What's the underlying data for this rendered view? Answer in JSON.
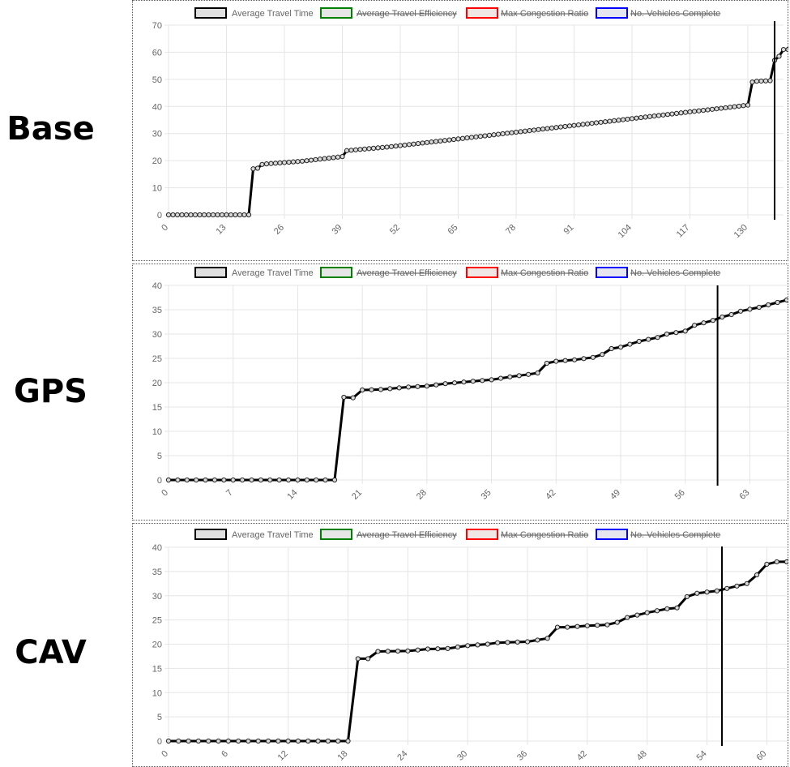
{
  "rows": [
    {
      "label": "Base"
    },
    {
      "label": "GPS"
    },
    {
      "label": "CAV"
    }
  ],
  "legend_items": [
    {
      "label": "Average Travel Time",
      "color": "#000000",
      "fill": "#e0e0e0",
      "struck": false
    },
    {
      "label": "Average Travel Efficiency",
      "color": "#008000",
      "fill": "#e6e6e6",
      "struck": true
    },
    {
      "label": "Max Congestion Ratio",
      "color": "#ff0000",
      "fill": "#efe6e6",
      "struck": true
    },
    {
      "label": "No. Vehicles Complete",
      "color": "#0000ff",
      "fill": "#e6e6ef",
      "struck": true
    }
  ],
  "chart_data": [
    {
      "type": "line",
      "name": "Base",
      "x_min": 0,
      "x_max": 138,
      "x_ticks": [
        0,
        13,
        26,
        39,
        52,
        65,
        78,
        91,
        104,
        117,
        130
      ],
      "ylim": [
        0,
        70
      ],
      "y_ticks": [
        0,
        10,
        20,
        30,
        40,
        50,
        60,
        70
      ],
      "grid": true,
      "legend_position": "top",
      "vertical_marker_x": 136,
      "keypoints": [
        [
          0,
          0
        ],
        [
          18,
          0
        ],
        [
          19,
          17
        ],
        [
          20,
          17.2
        ],
        [
          21,
          18.6
        ],
        [
          22,
          18.8
        ],
        [
          30,
          19.8
        ],
        [
          39,
          21.5
        ],
        [
          40,
          23.7
        ],
        [
          49,
          25
        ],
        [
          65,
          28
        ],
        [
          78,
          30.5
        ],
        [
          91,
          33
        ],
        [
          104,
          35.5
        ],
        [
          117,
          38
        ],
        [
          125,
          39.5
        ],
        [
          130,
          40.5
        ],
        [
          131,
          49
        ],
        [
          132,
          49.3
        ],
        [
          135,
          49.5
        ],
        [
          136,
          57
        ],
        [
          137,
          58.5
        ],
        [
          138,
          61
        ],
        [
          140,
          61
        ]
      ],
      "series": [
        {
          "name": "Average Travel Time",
          "color": "#000000"
        }
      ]
    },
    {
      "type": "line",
      "name": "GPS",
      "x_min": 0,
      "x_max": 67,
      "x_ticks": [
        0,
        7,
        14,
        21,
        28,
        35,
        42,
        49,
        56,
        63
      ],
      "ylim": [
        0,
        40
      ],
      "y_ticks": [
        0,
        5,
        10,
        15,
        20,
        25,
        30,
        35,
        40
      ],
      "grid": true,
      "legend_position": "top",
      "vertical_marker_x": 59.5,
      "keypoints": [
        [
          0,
          0
        ],
        [
          18,
          0
        ],
        [
          19,
          17
        ],
        [
          20,
          16.9
        ],
        [
          21,
          18.5
        ],
        [
          23,
          18.6
        ],
        [
          26,
          19.1
        ],
        [
          28,
          19.3
        ],
        [
          30,
          19.8
        ],
        [
          33,
          20.3
        ],
        [
          35,
          20.6
        ],
        [
          37,
          21.2
        ],
        [
          39,
          21.7
        ],
        [
          40,
          22
        ],
        [
          41,
          24
        ],
        [
          42,
          24.4
        ],
        [
          44,
          24.7
        ],
        [
          46,
          25.2
        ],
        [
          47,
          25.8
        ],
        [
          48,
          27
        ],
        [
          49,
          27.3
        ],
        [
          51,
          28.5
        ],
        [
          53,
          29.3
        ],
        [
          54,
          30
        ],
        [
          56,
          30.6
        ],
        [
          57,
          31.8
        ],
        [
          59,
          32.8
        ],
        [
          60,
          33.5
        ],
        [
          61,
          34
        ],
        [
          62,
          34.7
        ],
        [
          64,
          35.5
        ],
        [
          65,
          36
        ],
        [
          66,
          36.5
        ],
        [
          67,
          37
        ]
      ],
      "series": [
        {
          "name": "Average Travel Time",
          "color": "#000000"
        }
      ]
    },
    {
      "type": "line",
      "name": "CAV",
      "x_min": 0,
      "x_max": 62,
      "x_ticks": [
        0,
        6,
        12,
        18,
        24,
        30,
        36,
        42,
        48,
        54,
        60
      ],
      "ylim": [
        0,
        40
      ],
      "y_ticks": [
        0,
        5,
        10,
        15,
        20,
        25,
        30,
        35,
        40
      ],
      "grid": true,
      "legend_position": "top",
      "vertical_marker_x": 55.5,
      "keypoints": [
        [
          0,
          0
        ],
        [
          18,
          0
        ],
        [
          19,
          17
        ],
        [
          20,
          17
        ],
        [
          21,
          18.5
        ],
        [
          24,
          18.6
        ],
        [
          25,
          18.8
        ],
        [
          26,
          19
        ],
        [
          28,
          19.1
        ],
        [
          30,
          19.7
        ],
        [
          32,
          20
        ],
        [
          33,
          20.3
        ],
        [
          36,
          20.5
        ],
        [
          38,
          21.2
        ],
        [
          39,
          23.5
        ],
        [
          40,
          23.5
        ],
        [
          42,
          23.8
        ],
        [
          44,
          24
        ],
        [
          45,
          24.5
        ],
        [
          46,
          25.5
        ],
        [
          48,
          26.5
        ],
        [
          50,
          27.3
        ],
        [
          51,
          27.5
        ],
        [
          52,
          29.8
        ],
        [
          53,
          30.5
        ],
        [
          55,
          31
        ],
        [
          56,
          31.5
        ],
        [
          58,
          32.5
        ],
        [
          59,
          34.3
        ],
        [
          60,
          36.5
        ],
        [
          61,
          37
        ],
        [
          62,
          37
        ]
      ],
      "series": [
        {
          "name": "Average Travel Time",
          "color": "#000000"
        }
      ]
    }
  ]
}
